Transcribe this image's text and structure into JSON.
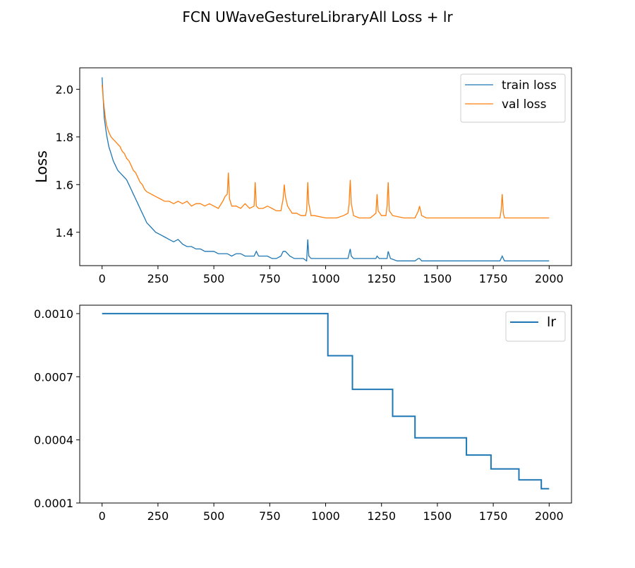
{
  "figure": {
    "title": "FCN UWaveGestureLibraryAll Loss + lr"
  },
  "chart_data": [
    {
      "type": "line",
      "title": "",
      "xlabel": "",
      "ylabel": "Loss",
      "xlim": [
        -100,
        2100
      ],
      "ylim": [
        1.26,
        2.09
      ],
      "xticks": [
        0,
        250,
        500,
        750,
        1000,
        1250,
        1500,
        1750,
        2000
      ],
      "xtick_labels": [
        "0",
        "250",
        "500",
        "750",
        "1000",
        "1250",
        "1500",
        "1750",
        "2000"
      ],
      "yticks": [
        1.4,
        1.6,
        1.8,
        2.0
      ],
      "ytick_labels": [
        "1.4",
        "1.6",
        "1.8",
        "2.0"
      ],
      "grid": false,
      "legend": "top-right",
      "series": [
        {
          "name": "train loss",
          "color": "#1f77b4",
          "x": [
            0,
            5,
            10,
            20,
            30,
            40,
            50,
            60,
            70,
            80,
            90,
            100,
            110,
            120,
            130,
            140,
            150,
            160,
            170,
            180,
            190,
            200,
            220,
            240,
            260,
            280,
            300,
            320,
            340,
            360,
            380,
            400,
            420,
            440,
            460,
            480,
            500,
            520,
            540,
            560,
            580,
            600,
            620,
            640,
            660,
            680,
            690,
            700,
            720,
            740,
            760,
            780,
            800,
            810,
            820,
            830,
            840,
            860,
            880,
            900,
            915,
            920,
            925,
            935,
            950,
            1000,
            1050,
            1100,
            1105,
            1110,
            1115,
            1125,
            1150,
            1200,
            1225,
            1230,
            1240,
            1260,
            1275,
            1280,
            1290,
            1320,
            1360,
            1400,
            1415,
            1420,
            1430,
            1450,
            1500,
            1600,
            1700,
            1780,
            1790,
            1800,
            1900,
            2000
          ],
          "y": [
            2.05,
            1.96,
            1.88,
            1.81,
            1.76,
            1.73,
            1.7,
            1.68,
            1.66,
            1.65,
            1.64,
            1.63,
            1.62,
            1.6,
            1.58,
            1.56,
            1.54,
            1.52,
            1.5,
            1.48,
            1.46,
            1.44,
            1.42,
            1.4,
            1.39,
            1.38,
            1.37,
            1.36,
            1.37,
            1.35,
            1.34,
            1.34,
            1.33,
            1.33,
            1.32,
            1.32,
            1.32,
            1.31,
            1.31,
            1.31,
            1.3,
            1.31,
            1.31,
            1.3,
            1.3,
            1.3,
            1.32,
            1.3,
            1.3,
            1.3,
            1.29,
            1.29,
            1.3,
            1.32,
            1.32,
            1.31,
            1.3,
            1.29,
            1.29,
            1.29,
            1.28,
            1.37,
            1.3,
            1.29,
            1.29,
            1.29,
            1.29,
            1.29,
            1.31,
            1.33,
            1.3,
            1.29,
            1.29,
            1.29,
            1.29,
            1.3,
            1.29,
            1.29,
            1.29,
            1.32,
            1.29,
            1.28,
            1.28,
            1.28,
            1.29,
            1.29,
            1.28,
            1.28,
            1.28,
            1.28,
            1.28,
            1.28,
            1.3,
            1.28,
            1.28,
            1.28
          ]
        },
        {
          "name": "val loss",
          "color": "#ff7f0e",
          "x": [
            0,
            5,
            10,
            15,
            20,
            30,
            40,
            50,
            60,
            70,
            80,
            90,
            100,
            110,
            120,
            130,
            140,
            150,
            160,
            170,
            180,
            190,
            200,
            220,
            240,
            260,
            280,
            300,
            320,
            340,
            360,
            380,
            400,
            420,
            440,
            460,
            480,
            500,
            520,
            540,
            550,
            560,
            565,
            570,
            580,
            600,
            620,
            640,
            660,
            680,
            685,
            690,
            700,
            720,
            740,
            760,
            780,
            800,
            810,
            815,
            820,
            830,
            850,
            870,
            890,
            910,
            915,
            920,
            925,
            935,
            950,
            1000,
            1050,
            1080,
            1100,
            1105,
            1110,
            1115,
            1125,
            1150,
            1200,
            1225,
            1230,
            1235,
            1250,
            1270,
            1275,
            1280,
            1285,
            1300,
            1350,
            1400,
            1415,
            1420,
            1430,
            1450,
            1500,
            1600,
            1700,
            1780,
            1785,
            1790,
            1795,
            1800,
            1850,
            1900,
            1950,
            2000
          ],
          "y": [
            2.02,
            1.96,
            1.92,
            1.88,
            1.85,
            1.82,
            1.8,
            1.79,
            1.78,
            1.77,
            1.76,
            1.74,
            1.73,
            1.71,
            1.7,
            1.68,
            1.66,
            1.65,
            1.63,
            1.61,
            1.6,
            1.58,
            1.57,
            1.56,
            1.55,
            1.54,
            1.53,
            1.53,
            1.52,
            1.53,
            1.52,
            1.53,
            1.51,
            1.52,
            1.52,
            1.51,
            1.52,
            1.51,
            1.5,
            1.53,
            1.55,
            1.56,
            1.65,
            1.54,
            1.51,
            1.51,
            1.5,
            1.52,
            1.5,
            1.51,
            1.61,
            1.51,
            1.5,
            1.5,
            1.51,
            1.5,
            1.49,
            1.49,
            1.54,
            1.6,
            1.55,
            1.51,
            1.48,
            1.48,
            1.47,
            1.47,
            1.49,
            1.61,
            1.52,
            1.47,
            1.47,
            1.46,
            1.46,
            1.47,
            1.48,
            1.52,
            1.62,
            1.52,
            1.47,
            1.46,
            1.46,
            1.48,
            1.56,
            1.49,
            1.47,
            1.47,
            1.51,
            1.61,
            1.49,
            1.47,
            1.46,
            1.46,
            1.49,
            1.51,
            1.47,
            1.46,
            1.46,
            1.46,
            1.46,
            1.46,
            1.49,
            1.56,
            1.48,
            1.46,
            1.46,
            1.46,
            1.46,
            1.46
          ]
        }
      ]
    },
    {
      "type": "line",
      "title": "",
      "xlabel": "",
      "ylabel": "",
      "xlim": [
        -100,
        2100
      ],
      "ylim": [
        0.0001,
        0.00104
      ],
      "xticks": [
        0,
        250,
        500,
        750,
        1000,
        1250,
        1500,
        1750,
        2000
      ],
      "xtick_labels": [
        "0",
        "250",
        "500",
        "750",
        "1000",
        "1250",
        "1500",
        "1750",
        "2000"
      ],
      "yticks": [
        0.0001,
        0.0004,
        0.0007,
        0.001
      ],
      "ytick_labels": [
        "0.0001",
        "0.0004",
        "0.0007",
        "0.0010"
      ],
      "grid": false,
      "legend": "top-right",
      "series": [
        {
          "name": "lr",
          "color": "#1f77b4",
          "step": true,
          "x": [
            0,
            1010,
            1010,
            1120,
            1120,
            1300,
            1300,
            1400,
            1400,
            1630,
            1630,
            1740,
            1740,
            1865,
            1865,
            1965,
            1965,
            2000
          ],
          "y": [
            0.001,
            0.001,
            0.0008,
            0.0008,
            0.00064,
            0.00064,
            0.000512,
            0.000512,
            0.00041,
            0.00041,
            0.000328,
            0.000328,
            0.000262,
            0.000262,
            0.00021,
            0.00021,
            0.000168,
            0.000168
          ]
        }
      ]
    }
  ]
}
